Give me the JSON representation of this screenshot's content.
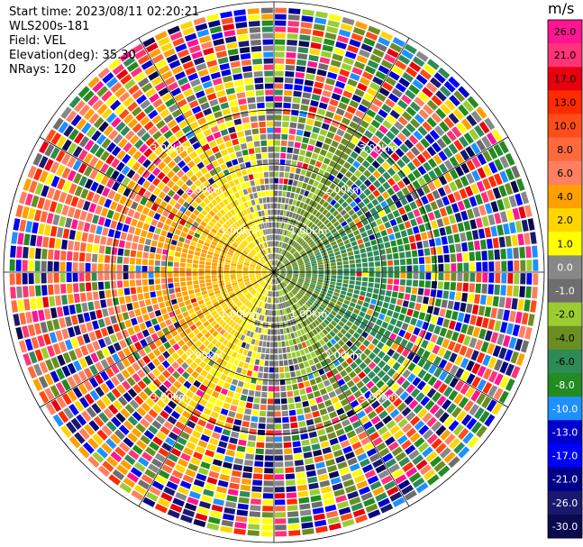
{
  "info": {
    "start_time": "Start time: 2023/08/11 02:20:21",
    "instrument": "WLS200s-181",
    "field": "Field: VEL",
    "elevation": "Elevation(deg): 35.30",
    "nrays": "NRays: 120"
  },
  "chart_data": {
    "type": "heatmap",
    "projection": "polar PPI (range rings + radial grid)",
    "title": "",
    "field": "VEL",
    "units": "m/s",
    "n_rays": 120,
    "elevation_deg": 35.3,
    "range_rings_km": [
      1.0,
      2.0,
      3.0
    ],
    "range_ring_labels": [
      "1.00km",
      "2.00km",
      "3.00km"
    ],
    "radial_grid_deg": 30,
    "colorbar": {
      "label": "m/s",
      "ticks": [
        "26.0",
        "21.0",
        "17.0",
        "13.0",
        "10.0",
        "8.0",
        "6.0",
        "4.0",
        "2.0",
        "1.0",
        "0.0",
        "-1.0",
        "-2.0",
        "-4.0",
        "-6.0",
        "-8.0",
        "-10.0",
        "-13.0",
        "-17.0",
        "-21.0",
        "-26.0",
        "-30.0"
      ],
      "colors": [
        "#ff1493",
        "#ff3377",
        "#e8000e",
        "#ff2a00",
        "#ff4d1a",
        "#ff6a3d",
        "#ff8060",
        "#ffa000",
        "#ffd500",
        "#ffff00",
        "#888888",
        "#6e6e6e",
        "#9acd32",
        "#6b8e23",
        "#2e8b57",
        "#228b22",
        "#1e90ff",
        "#0000cd",
        "#0000ff",
        "#00008b",
        "#191970",
        "#0a0a50"
      ]
    },
    "velocity_pattern": {
      "approach_side": "east (negative / green-blue)",
      "recede_side": "west (positive / yellow-orange-red)",
      "noise_ranges": "outer ranges beyond ~1.5 km are dominated by noisy multicolour gates"
    }
  }
}
